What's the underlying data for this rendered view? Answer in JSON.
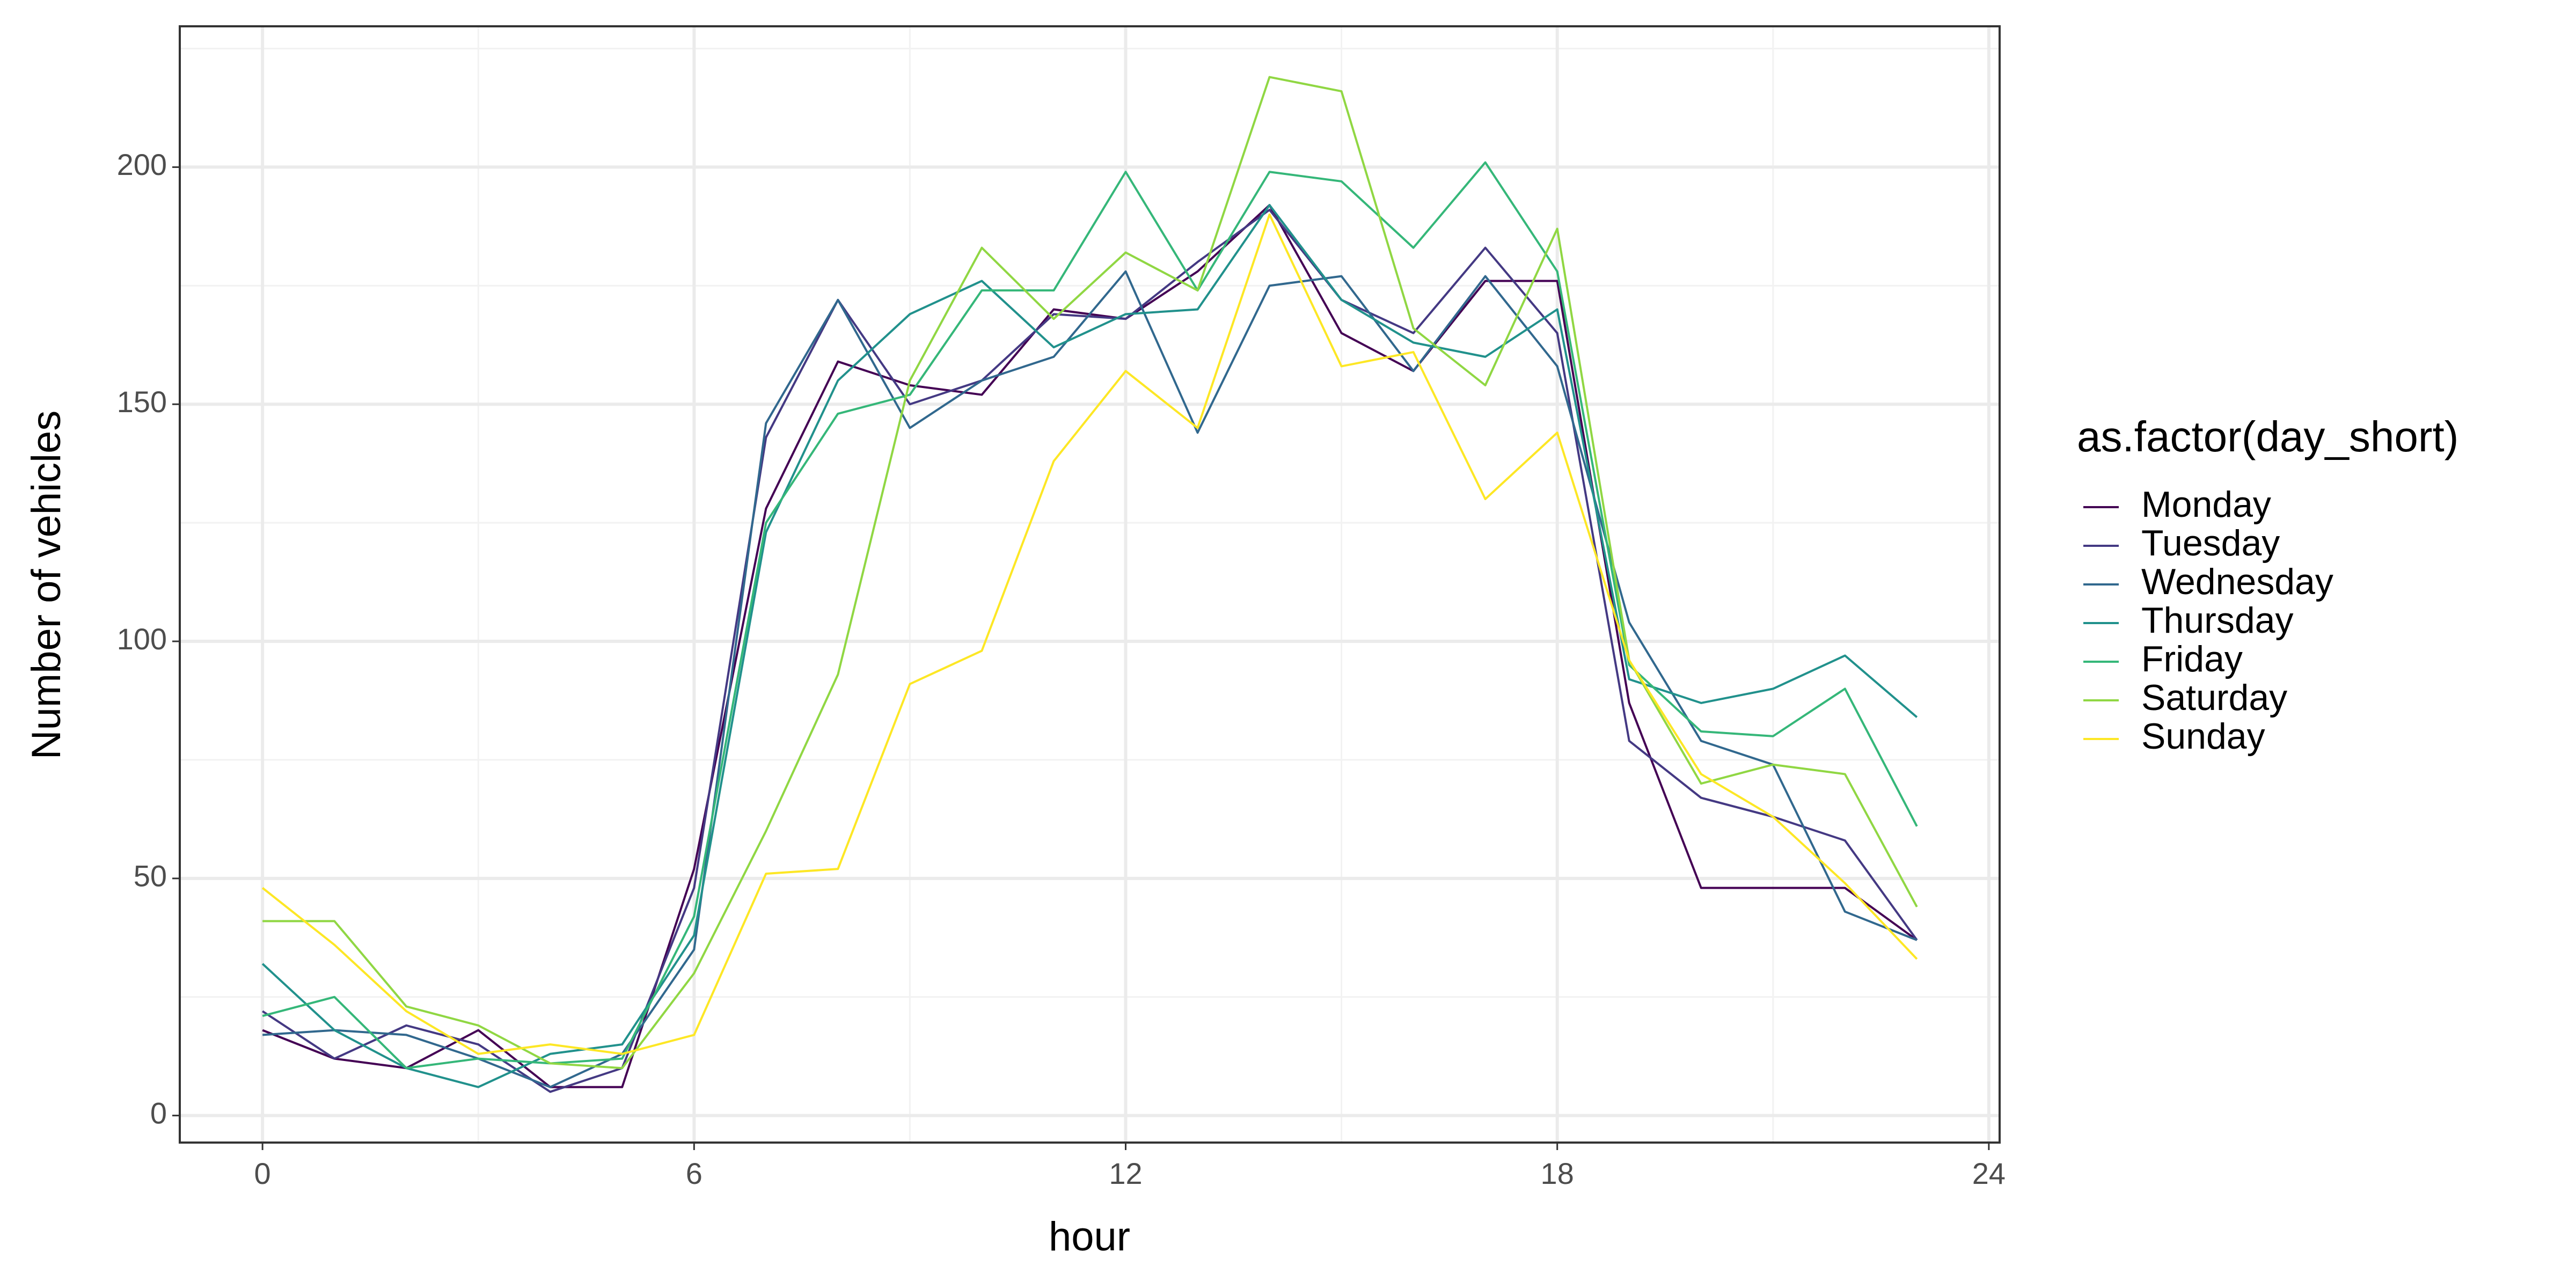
{
  "chart_data": {
    "type": "line",
    "x_label": "hour",
    "y_label": "Number of vehicles",
    "legend_title": "as.factor(day_short)",
    "legend": "right",
    "grid": true,
    "xlim": [
      -1.15,
      24.15
    ],
    "ylim": [
      -5.7,
      229.7
    ],
    "xticks": [
      0,
      6,
      12,
      18,
      24
    ],
    "yticks": [
      0,
      50,
      100,
      150,
      200
    ],
    "minor_xticks": [
      3,
      9,
      15,
      21
    ],
    "minor_yticks": [
      25,
      75,
      125,
      175,
      225
    ],
    "x": [
      0,
      1,
      2,
      3,
      4,
      5,
      6,
      7,
      8,
      9,
      10,
      11,
      12,
      13,
      14,
      15,
      16,
      17,
      18,
      19,
      20,
      21,
      22,
      23
    ],
    "series": [
      {
        "name": "Monday",
        "color": "#440154",
        "values": [
          18,
          12,
          10,
          18,
          6,
          6,
          52,
          128,
          159,
          154,
          152,
          170,
          168,
          178,
          192,
          165,
          157,
          176,
          176,
          87,
          48,
          48,
          48,
          37
        ]
      },
      {
        "name": "Tuesday",
        "color": "#443983",
        "values": [
          22,
          12,
          19,
          15,
          5,
          10,
          48,
          143,
          172,
          150,
          155,
          169,
          168,
          180,
          191,
          172,
          165,
          183,
          165,
          79,
          67,
          63,
          58,
          37
        ]
      },
      {
        "name": "Wednesday",
        "color": "#31688e",
        "values": [
          17,
          18,
          17,
          12,
          6,
          13,
          35,
          146,
          172,
          145,
          155,
          160,
          178,
          144,
          175,
          177,
          157,
          177,
          158,
          104,
          79,
          74,
          43,
          37
        ]
      },
      {
        "name": "Thursday",
        "color": "#21918c",
        "values": [
          32,
          18,
          10,
          6,
          13,
          15,
          38,
          123,
          155,
          169,
          176,
          162,
          169,
          170,
          192,
          172,
          163,
          160,
          170,
          92,
          87,
          90,
          97,
          84
        ]
      },
      {
        "name": "Friday",
        "color": "#35b779",
        "values": [
          21,
          25,
          10,
          12,
          11,
          12,
          42,
          125,
          148,
          152,
          174,
          174,
          199,
          174,
          199,
          197,
          183,
          201,
          178,
          95,
          81,
          80,
          90,
          61
        ]
      },
      {
        "name": "Saturday",
        "color": "#90d743",
        "values": [
          41,
          41,
          23,
          19,
          11,
          10,
          30,
          60,
          93,
          155,
          183,
          168,
          182,
          174,
          219,
          216,
          166,
          154,
          187,
          96,
          70,
          74,
          72,
          44
        ]
      },
      {
        "name": "Sunday",
        "color": "#fde725",
        "values": [
          48,
          36,
          22,
          13,
          15,
          13,
          17,
          51,
          52,
          91,
          98,
          138,
          157,
          145,
          190,
          158,
          161,
          130,
          144,
          96,
          72,
          63,
          49,
          33
        ]
      }
    ]
  }
}
